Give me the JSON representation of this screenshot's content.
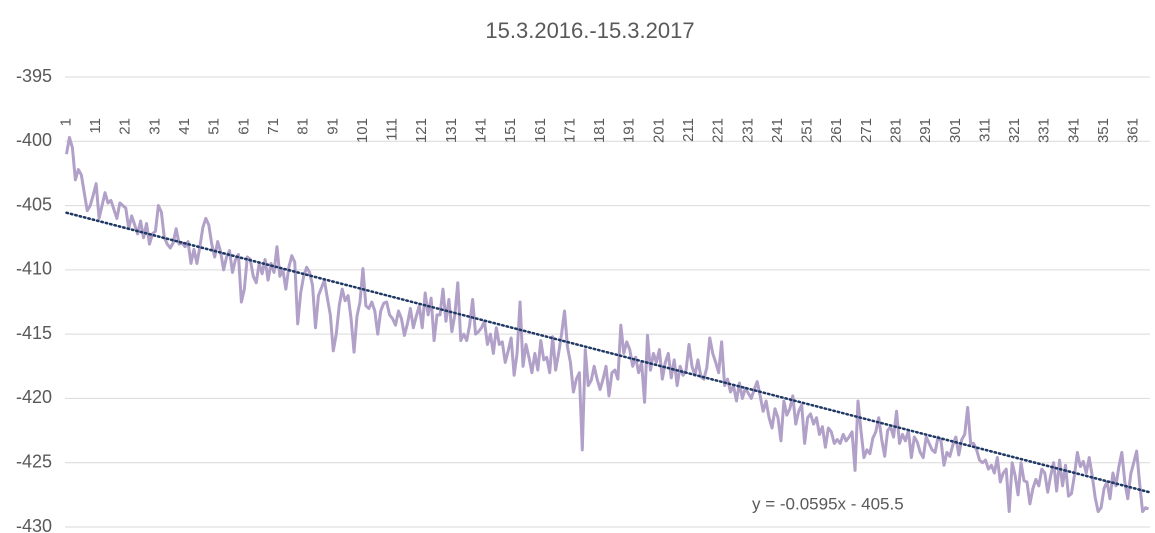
{
  "chart_data": {
    "type": "line",
    "title": "15.3.2016.-15.3.2017",
    "categories": [
      1,
      null,
      null,
      null,
      null,
      null,
      null,
      null,
      null,
      null,
      11,
      null,
      null,
      null,
      null,
      null,
      null,
      null,
      null,
      null,
      21,
      null,
      null,
      null,
      null,
      null,
      null,
      null,
      null,
      null,
      31,
      null,
      null,
      null,
      null,
      null,
      null,
      null,
      null,
      null,
      41,
      null,
      null,
      null,
      null,
      null,
      null,
      null,
      null,
      null,
      51,
      null,
      null,
      null,
      null,
      null,
      null,
      null,
      null,
      null,
      61,
      null,
      null,
      null,
      null,
      null,
      null,
      null,
      null,
      null,
      71,
      null,
      null,
      null,
      null,
      null,
      null,
      null,
      null,
      null,
      81,
      null,
      null,
      null,
      null,
      null,
      null,
      null,
      null,
      null,
      91,
      null,
      null,
      null,
      null,
      null,
      null,
      null,
      null,
      null,
      101,
      null,
      null,
      null,
      null,
      null,
      null,
      null,
      null,
      null,
      111,
      null,
      null,
      null,
      null,
      null,
      null,
      null,
      null,
      null,
      121,
      null,
      null,
      null,
      null,
      null,
      null,
      null,
      null,
      null,
      131,
      null,
      null,
      null,
      null,
      null,
      null,
      null,
      null,
      null,
      141,
      null,
      null,
      null,
      null,
      null,
      null,
      null,
      null,
      null,
      151,
      null,
      null,
      null,
      null,
      null,
      null,
      null,
      null,
      null,
      161,
      null,
      null,
      null,
      null,
      null,
      null,
      null,
      null,
      null,
      171,
      null,
      null,
      null,
      null,
      null,
      null,
      null,
      null,
      null,
      181,
      null,
      null,
      null,
      null,
      null,
      null,
      null,
      null,
      null,
      191,
      null,
      null,
      null,
      null,
      null,
      null,
      null,
      null,
      null,
      201,
      null,
      null,
      null,
      null,
      null,
      null,
      null,
      null,
      null,
      211,
      null,
      null,
      null,
      null,
      null,
      null,
      null,
      null,
      null,
      221,
      null,
      null,
      null,
      null,
      null,
      null,
      null,
      null,
      null,
      231,
      null,
      null,
      null,
      null,
      null,
      null,
      null,
      null,
      null,
      241,
      null,
      null,
      null,
      null,
      null,
      null,
      null,
      null,
      null,
      251,
      null,
      null,
      null,
      null,
      null,
      null,
      null,
      null,
      null,
      261,
      null,
      null,
      null,
      null,
      null,
      null,
      null,
      null,
      null,
      271,
      null,
      null,
      null,
      null,
      null,
      null,
      null,
      null,
      null,
      281,
      null,
      null,
      null,
      null,
      null,
      null,
      null,
      null,
      null,
      291,
      null,
      null,
      null,
      null,
      null,
      null,
      null,
      null,
      null,
      301,
      null,
      null,
      null,
      null,
      null,
      null,
      null,
      null,
      null,
      311,
      null,
      null,
      null,
      null,
      null,
      null,
      null,
      null,
      null,
      321,
      null,
      null,
      null,
      null,
      null,
      null,
      null,
      null,
      null,
      331,
      null,
      null,
      null,
      null,
      null,
      null,
      null,
      null,
      null,
      341,
      null,
      null,
      null,
      null,
      null,
      null,
      null,
      null,
      null,
      351,
      null,
      null,
      null,
      null,
      null,
      null,
      null,
      null,
      null,
      361,
      null,
      null,
      null,
      null,
      null
    ],
    "series": [
      {
        "color": "#b1a0c8",
        "values": [
          -401,
          -399.7,
          -400.5,
          -403,
          -402.2,
          -402.6,
          -404,
          -405.4,
          -405,
          -404.2,
          -403.3,
          -406,
          -405,
          -404,
          -404.8,
          -404.6,
          -405.3,
          -406,
          -404.8,
          -405,
          -405.2,
          -406.8,
          -405.8,
          -406.5,
          -407.2,
          -406.2,
          -407.5,
          -406.4,
          -408,
          -407.2,
          -407,
          -405,
          -405.5,
          -407.5,
          -408,
          -408.3,
          -407.9,
          -406.8,
          -408,
          -407.9,
          -408.2,
          -407.8,
          -409.5,
          -408.4,
          -409.5,
          -408.2,
          -406.7,
          -406,
          -406.5,
          -408,
          -409,
          -407.8,
          -408.6,
          -410,
          -409,
          -408.5,
          -410.2,
          -409.2,
          -408.8,
          -412.5,
          -411.5,
          -409,
          -409.2,
          -410.5,
          -411,
          -409.5,
          -410.3,
          -409.2,
          -410.8,
          -409.5,
          -410.2,
          -408.2,
          -410.5,
          -410,
          -411.5,
          -409.8,
          -408.9,
          -409.4,
          -414.2,
          -411.8,
          -410.5,
          -409.8,
          -410.2,
          -411.2,
          -414.5,
          -412,
          -411.4,
          -410.8,
          -412.2,
          -413.5,
          -416.3,
          -415,
          -412.8,
          -411.5,
          -412.4,
          -412,
          -413.8,
          -416.4,
          -413.6,
          -412.5,
          -409.9,
          -412.8,
          -413,
          -412.5,
          -413.2,
          -415,
          -413.2,
          -412.6,
          -412.5,
          -413.5,
          -413.8,
          -414.3,
          -413.2,
          -413.8,
          -415.1,
          -414.2,
          -413,
          -414.5,
          -413.6,
          -412.8,
          -414.5,
          -411.8,
          -413.5,
          -412.2,
          -415.5,
          -413.5,
          -413.5,
          -411.5,
          -414,
          -412.3,
          -414.8,
          -413.5,
          -411,
          -415.5,
          -415,
          -415.5,
          -414.3,
          -412.3,
          -415,
          -414.8,
          -414.5,
          -414,
          -415.8,
          -415,
          -416.5,
          -414.5,
          -415.8,
          -415.6,
          -417.2,
          -416.3,
          -415.3,
          -418.2,
          -416.5,
          -412.5,
          -417.5,
          -415.8,
          -416.8,
          -418,
          -416.5,
          -417.8,
          -415.5,
          -417,
          -416.8,
          -418,
          -415.2,
          -417.8,
          -416.5,
          -415,
          -413.2,
          -416,
          -417.2,
          -419.5,
          -418.5,
          -418,
          -424,
          -416.2,
          -419,
          -418.6,
          -417.5,
          -418.5,
          -419.3,
          -418.5,
          -417.5,
          -419.8,
          -418,
          -417.8,
          -418.5,
          -414.3,
          -416.5,
          -415.6,
          -416.2,
          -417.5,
          -416.8,
          -418,
          -417.2,
          -420.3,
          -415.1,
          -417.8,
          -416.5,
          -417.2,
          -416.2,
          -418.5,
          -417.2,
          -416.5,
          -418.4,
          -417,
          -419,
          -417.5,
          -418.2,
          -417.8,
          -415.8,
          -417.5,
          -418.2,
          -417,
          -418.3,
          -418.5,
          -417.6,
          -415.3,
          -416.5,
          -417.2,
          -418,
          -415.6,
          -419,
          -418.5,
          -419.5,
          -419,
          -420.2,
          -418.8,
          -420,
          -419.2,
          -419.6,
          -420,
          -419.3,
          -418.7,
          -419.8,
          -421,
          -420.2,
          -421.5,
          -422.3,
          -420.8,
          -421.5,
          -423.3,
          -420.2,
          -421.3,
          -420.8,
          -419.8,
          -422,
          -421,
          -420.5,
          -423.5,
          -421.5,
          -421.2,
          -422,
          -421.5,
          -422.8,
          -422.2,
          -423.8,
          -422.3,
          -422.6,
          -423.5,
          -423.2,
          -423.5,
          -422.8,
          -423.3,
          -423,
          -422.6,
          -425.6,
          -420.2,
          -422.5,
          -424.6,
          -424,
          -424.3,
          -423.1,
          -422.6,
          -421.5,
          -423.2,
          -424.5,
          -422.5,
          -422.2,
          -423,
          -421,
          -423.5,
          -422.8,
          -423.3,
          -422.5,
          -424.6,
          -423,
          -423.4,
          -424.2,
          -424.6,
          -423,
          -423.5,
          -424,
          -424.2,
          -423,
          -423.3,
          -425.2,
          -424.2,
          -424.5,
          -423.6,
          -423,
          -424.4,
          -423.2,
          -422.8,
          -420.7,
          -423.5,
          -423.5,
          -424,
          -424.8,
          -425,
          -424.8,
          -425.5,
          -425.2,
          -425.8,
          -424.6,
          -426.5,
          -425.8,
          -425.5,
          -428.8,
          -425,
          -426,
          -427.5,
          -425,
          -426.4,
          -426.5,
          -428.2,
          -427,
          -426.3,
          -426.8,
          -425.5,
          -425.8,
          -427.3,
          -426,
          -425,
          -427.2,
          -424.8,
          -426.8,
          -425.2,
          -427.6,
          -427.4,
          -426,
          -424.2,
          -425.3,
          -424.9,
          -425.8,
          -424.6,
          -426,
          -427.7,
          -428.8,
          -428.5,
          -427,
          -426.5,
          -427.8,
          -425.8,
          -426.8,
          -425.3,
          -424.2,
          -426.5,
          -427.8,
          -425.9,
          -425,
          -424.1,
          -426.6,
          -428.8,
          -428.5,
          -428.6
        ]
      }
    ],
    "trendline": {
      "slope": -0.0595,
      "intercept": -405.5,
      "color": "#1f3864",
      "label": "y = -0.0595x - 405.5"
    },
    "ylim": [
      -430,
      -395
    ],
    "yticks": [
      -395,
      -400,
      -405,
      -410,
      -415,
      -420,
      -425,
      -430
    ],
    "grid": true
  }
}
